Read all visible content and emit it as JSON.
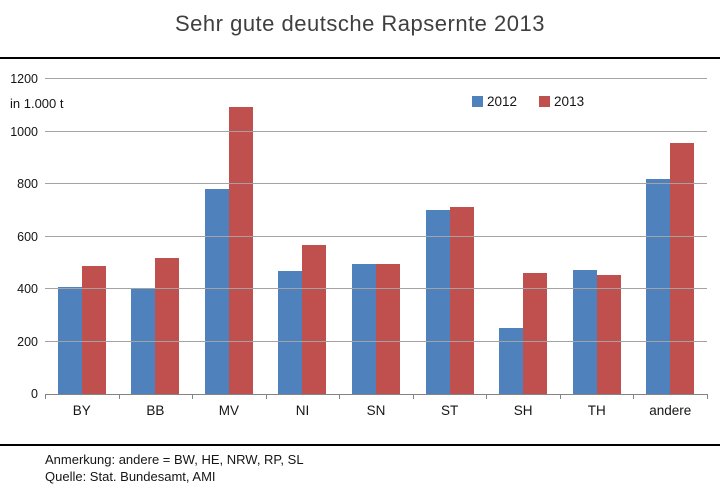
{
  "title": "Sehr gute deutsche Rapsernte 2013",
  "chart_data": {
    "type": "bar",
    "title": "Sehr gute deutsche Rapsernte 2013",
    "unit_label": "in 1.000  t",
    "categories": [
      "BY",
      "BB",
      "MV",
      "NI",
      "SN",
      "ST",
      "SH",
      "TH",
      "andere"
    ],
    "series": [
      {
        "name": "2012",
        "color": "#4F81BD",
        "values": [
          408,
          400,
          780,
          467,
          494,
          702,
          253,
          472,
          820
        ]
      },
      {
        "name": "2013",
        "color": "#C0504D",
        "values": [
          488,
          518,
          1095,
          567,
          494,
          714,
          460,
          455,
          957
        ]
      }
    ],
    "ylim": [
      0,
      1200
    ],
    "yticks": [
      0,
      200,
      400,
      600,
      800,
      1000,
      1200
    ],
    "grid": true,
    "legend_position": "top-right-inside"
  },
  "footer": {
    "note": "Anmerkung: andere = BW, HE, NRW, RP, SL",
    "source": "Quelle: Stat. Bundesamt, AMI"
  }
}
